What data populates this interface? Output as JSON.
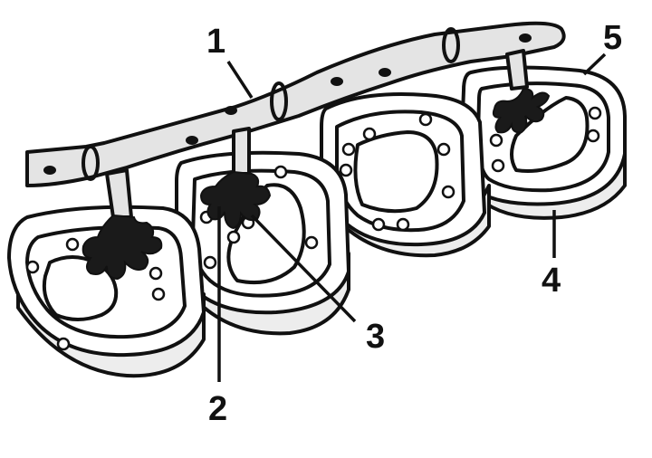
{
  "diagram": {
    "labels": {
      "l1": "1",
      "l2": "2",
      "l3": "3",
      "l4": "4",
      "l5": "5"
    }
  }
}
